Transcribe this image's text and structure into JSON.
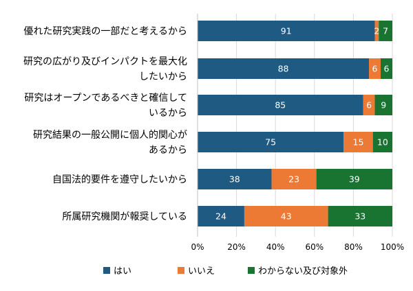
{
  "chart_data": {
    "type": "bar",
    "orientation": "horizontal",
    "stacked": true,
    "title": "",
    "xlabel": "",
    "ylabel": "",
    "xlim": [
      0,
      100
    ],
    "x_ticks": [
      "0%",
      "20%",
      "40%",
      "60%",
      "80%",
      "100%"
    ],
    "grid": true,
    "legend_position": "bottom",
    "categories": [
      [
        "優れた研究実践の一部だと考えるから"
      ],
      [
        "研究の広がり及びインパクトを最大化",
        "したいから"
      ],
      [
        "研究はオープンであるべきと確信して",
        "いるから"
      ],
      [
        "研究結果の一般公開に個人的関心が",
        "あるから"
      ],
      [
        "自国法的要件を遵守したいから"
      ],
      [
        "所属研究機関が報奨している"
      ]
    ],
    "series": [
      {
        "name": "はい",
        "color": "#1f5a82",
        "values": [
          91,
          88,
          85,
          75,
          38,
          24
        ]
      },
      {
        "name": "いいえ",
        "color": "#ec7a34",
        "values": [
          2,
          6,
          6,
          15,
          23,
          43
        ]
      },
      {
        "name": "わからない及び対象外",
        "color": "#1a7431",
        "values": [
          7,
          6,
          9,
          10,
          39,
          33
        ]
      }
    ]
  }
}
